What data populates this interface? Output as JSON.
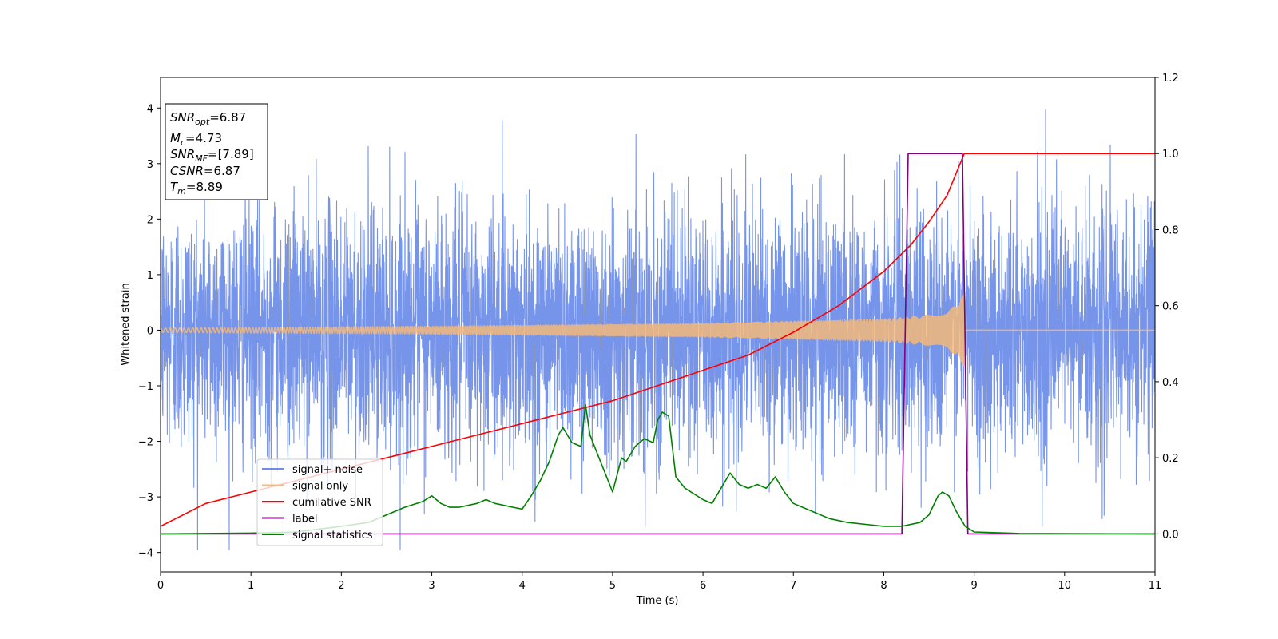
{
  "chart_data": {
    "type": "line",
    "xlabel": "Time (s)",
    "ylabel": "Whitened strain",
    "xlim": [
      0,
      11
    ],
    "ylim_left": [
      -4.35,
      4.55
    ],
    "ylim_right": [
      -0.1,
      1.2
    ],
    "xticks": [
      "0",
      "1",
      "2",
      "3",
      "4",
      "5",
      "6",
      "7",
      "8",
      "9",
      "10",
      "11"
    ],
    "yticks_left": [
      "4",
      "3",
      "2",
      "1",
      "0",
      "−1",
      "−2",
      "−3",
      "−4"
    ],
    "yticks_right": [
      "1.2",
      "1.0",
      "0.8",
      "0.6",
      "0.4",
      "0.2",
      "0.0"
    ],
    "info_box": [
      {
        "sym": "SNR",
        "sub": "opt",
        "val": "=6.87"
      },
      {
        "sym": "M",
        "sub": "c",
        "val": "=4.73"
      },
      {
        "sym": "SNR",
        "sub": "MF",
        "val": "=[7.89]"
      },
      {
        "sym": "CSNR",
        "sub": "",
        "val": "=6.87"
      },
      {
        "sym": "T",
        "sub": "m",
        "val": "=8.89"
      }
    ],
    "legend": {
      "placement": "lower-left",
      "entries": [
        {
          "label": "signal+ noise",
          "color": "#6f8ee8"
        },
        {
          "label": "signal only",
          "color": "#f5b97a"
        },
        {
          "label": "cumilative SNR",
          "color": "#ff0000"
        },
        {
          "label": "label",
          "color": "#800080"
        },
        {
          "label": "signal statistics",
          "color": "#008000"
        }
      ]
    },
    "series": [
      {
        "name": "signal+ noise",
        "axis": "left",
        "color": "#6f8ee8",
        "kind": "noise",
        "sigma": 1.0,
        "range": [
          -3.95,
          4.2
        ],
        "t_end": 11
      },
      {
        "name": "signal only",
        "axis": "left",
        "color": "#f5b97a",
        "kind": "chirp",
        "t_merger": 8.89,
        "amplitude": [
          [
            0,
            0.04
          ],
          [
            3,
            0.07
          ],
          [
            6,
            0.12
          ],
          [
            8,
            0.2
          ],
          [
            8.7,
            0.3
          ],
          [
            8.89,
            0.65
          ]
        ]
      },
      {
        "name": "cumilative SNR",
        "axis": "right",
        "color": "#ff0000",
        "x": [
          0,
          0.5,
          1,
          1.5,
          2,
          2.5,
          3,
          3.5,
          4,
          4.5,
          5,
          5.5,
          6,
          6.5,
          7,
          7.5,
          8,
          8.3,
          8.5,
          8.7,
          8.89,
          11
        ],
        "y": [
          0.02,
          0.08,
          0.11,
          0.14,
          0.17,
          0.2,
          0.23,
          0.26,
          0.29,
          0.32,
          0.35,
          0.39,
          0.43,
          0.47,
          0.53,
          0.6,
          0.69,
          0.76,
          0.82,
          0.89,
          1.0,
          1.0
        ]
      },
      {
        "name": "label",
        "axis": "right",
        "color": "#800080",
        "x": [
          0,
          8.2,
          8.27,
          8.87,
          8.93,
          11
        ],
        "y": [
          0.0,
          0.0,
          1.0,
          1.0,
          0.0,
          0.0
        ]
      },
      {
        "name": "signal statistics",
        "axis": "right",
        "color": "#008000",
        "x": [
          0,
          1,
          1.5,
          2,
          2.3,
          2.5,
          2.7,
          2.9,
          3.0,
          3.1,
          3.2,
          3.3,
          3.5,
          3.6,
          3.7,
          3.9,
          4.0,
          4.1,
          4.2,
          4.3,
          4.4,
          4.45,
          4.55,
          4.65,
          4.7,
          4.75,
          4.85,
          4.95,
          5.0,
          5.1,
          5.15,
          5.25,
          5.35,
          5.45,
          5.5,
          5.55,
          5.62,
          5.7,
          5.8,
          6.0,
          6.1,
          6.2,
          6.3,
          6.4,
          6.5,
          6.6,
          6.7,
          6.8,
          6.9,
          7.0,
          7.2,
          7.4,
          7.6,
          7.8,
          8.0,
          8.2,
          8.4,
          8.5,
          8.6,
          8.65,
          8.72,
          8.8,
          8.9,
          9.0,
          9.5,
          11
        ],
        "y": [
          0.0,
          0.002,
          0.005,
          0.02,
          0.03,
          0.05,
          0.07,
          0.085,
          0.1,
          0.08,
          0.07,
          0.07,
          0.08,
          0.09,
          0.08,
          0.07,
          0.065,
          0.1,
          0.14,
          0.19,
          0.26,
          0.28,
          0.24,
          0.23,
          0.34,
          0.26,
          0.2,
          0.14,
          0.11,
          0.2,
          0.19,
          0.23,
          0.25,
          0.24,
          0.3,
          0.32,
          0.31,
          0.15,
          0.12,
          0.09,
          0.08,
          0.12,
          0.16,
          0.13,
          0.12,
          0.13,
          0.12,
          0.15,
          0.11,
          0.08,
          0.06,
          0.04,
          0.03,
          0.025,
          0.02,
          0.02,
          0.03,
          0.05,
          0.1,
          0.11,
          0.1,
          0.06,
          0.02,
          0.005,
          0.001,
          0.0
        ]
      }
    ]
  }
}
